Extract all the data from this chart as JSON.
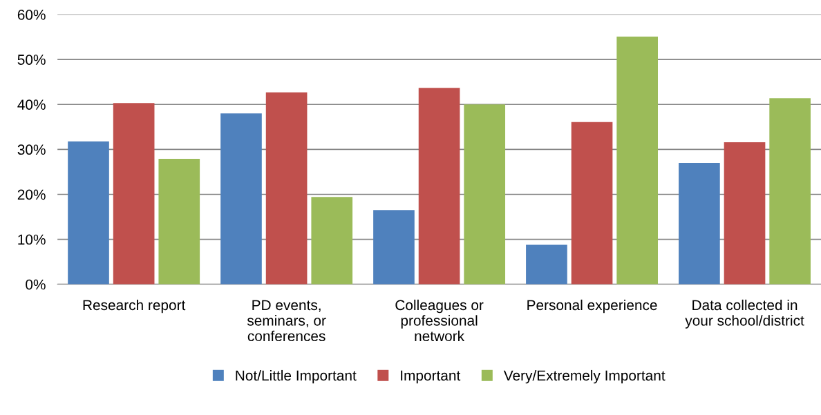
{
  "chart_data": {
    "type": "bar",
    "categories": [
      "Research report",
      "PD events,\nseminars, or\nconferences",
      "Colleagues or\nprofessional\nnetwork",
      "Personal experience",
      "Data collected in\nyour school/district"
    ],
    "series": [
      {
        "name": "Not/Little Important",
        "color": "#4f81bd",
        "values": [
          31.8,
          38.0,
          16.5,
          8.8,
          27.0
        ]
      },
      {
        "name": "Important",
        "color": "#c0504d",
        "values": [
          40.3,
          42.7,
          43.7,
          36.1,
          31.6
        ]
      },
      {
        "name": "Very/Extremely Important",
        "color": "#9bbb59",
        "values": [
          27.9,
          19.4,
          40.0,
          55.1,
          41.4
        ]
      }
    ],
    "ylim": [
      0,
      60
    ],
    "yticks": [
      {
        "value": 0,
        "label": "0%"
      },
      {
        "value": 10,
        "label": "10%"
      },
      {
        "value": 20,
        "label": "20%"
      },
      {
        "value": 30,
        "label": "30%"
      },
      {
        "value": 40,
        "label": "40%"
      },
      {
        "value": 50,
        "label": "50%"
      },
      {
        "value": 60,
        "label": "60%"
      }
    ],
    "grid": "y",
    "legend": "bottom"
  }
}
